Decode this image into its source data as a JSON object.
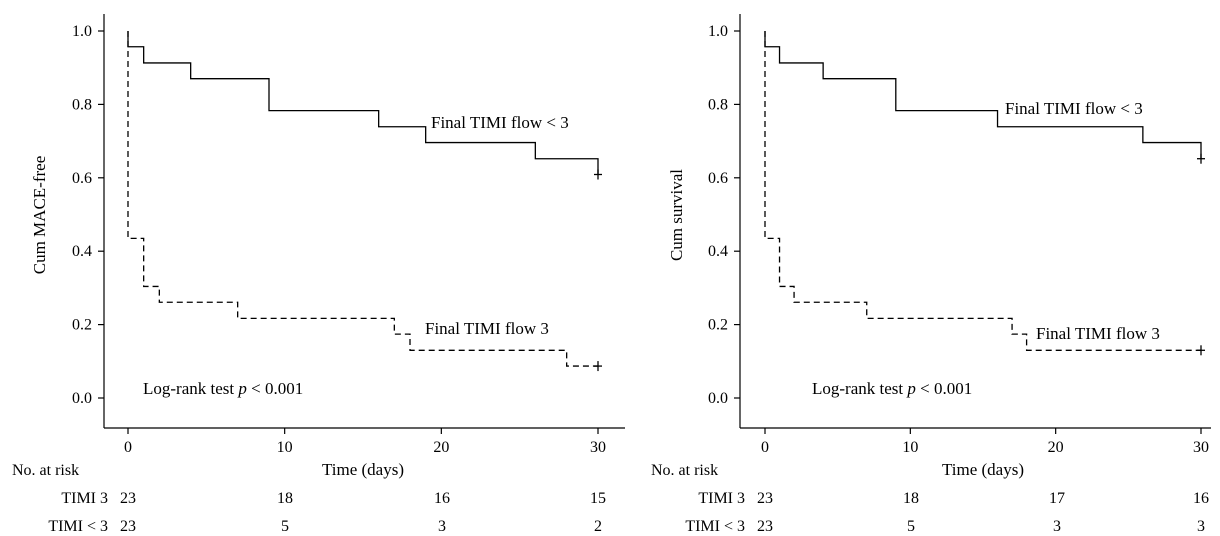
{
  "chart_data": [
    {
      "type": "line",
      "subtype": "kaplan-meier",
      "xlabel": "Time (days)",
      "ylabel": "Cum MACE-free",
      "xlim": [
        0,
        30
      ],
      "ylim": [
        0.0,
        1.0
      ],
      "xticks": [
        "0",
        "10",
        "20",
        "30"
      ],
      "yticks": [
        "0.0",
        "0.2",
        "0.4",
        "0.6",
        "0.8",
        "1.0"
      ],
      "grid": false,
      "annotation": "Log-rank test ",
      "annotation_p": "p",
      "annotation_rest": " < 0.001",
      "series": [
        {
          "name": "Final TIMI flow < 3",
          "style": "solid",
          "x": [
            0,
            1,
            4,
            9,
            16,
            19,
            26,
            30
          ],
          "y": [
            0.957,
            0.913,
            0.87,
            0.783,
            0.739,
            0.696,
            0.652,
            0.609
          ],
          "censored": [
            [
              30,
              0.609
            ]
          ]
        },
        {
          "name": "Final TIMI flow 3",
          "style": "dashed",
          "x": [
            0,
            1,
            2,
            7,
            17,
            18,
            28,
            30
          ],
          "y": [
            0.435,
            0.304,
            0.261,
            0.217,
            0.174,
            0.13,
            0.087,
            0.087
          ],
          "censored": [
            [
              30,
              0.087
            ]
          ]
        }
      ],
      "risk_table": {
        "title": "No. at risk",
        "times": [
          0,
          10,
          20,
          30
        ],
        "rows": [
          {
            "label": "TIMI 3",
            "values": [
              "23",
              "18",
              "16",
              "15"
            ]
          },
          {
            "label": "TIMI < 3",
            "values": [
              "23",
              "5",
              "3",
              "2"
            ]
          }
        ]
      }
    },
    {
      "type": "line",
      "subtype": "kaplan-meier",
      "xlabel": "Time (days)",
      "ylabel": "Cum survival",
      "xlim": [
        0,
        30
      ],
      "ylim": [
        0.0,
        1.0
      ],
      "xticks": [
        "0",
        "10",
        "20",
        "30"
      ],
      "yticks": [
        "0.0",
        "0.2",
        "0.4",
        "0.6",
        "0.8",
        "1.0"
      ],
      "grid": false,
      "annotation": "Log-rank test ",
      "annotation_p": "p",
      "annotation_rest": " < 0.001",
      "series": [
        {
          "name": "Final TIMI flow < 3",
          "style": "solid",
          "x": [
            0,
            1,
            4,
            9,
            16,
            26,
            30
          ],
          "y": [
            0.957,
            0.913,
            0.87,
            0.783,
            0.739,
            0.696,
            0.652
          ],
          "censored": [
            [
              30,
              0.652
            ]
          ]
        },
        {
          "name": "Final TIMI flow 3",
          "style": "dashed",
          "x": [
            0,
            1,
            2,
            7,
            17,
            18,
            30
          ],
          "y": [
            0.435,
            0.304,
            0.261,
            0.217,
            0.174,
            0.13,
            0.13
          ],
          "censored": [
            [
              30,
              0.13
            ]
          ]
        }
      ],
      "risk_table": {
        "title": "No. at risk",
        "times": [
          0,
          10,
          20,
          30
        ],
        "rows": [
          {
            "label": "TIMI 3",
            "values": [
              "23",
              "18",
              "17",
              "16"
            ]
          },
          {
            "label": "TIMI < 3",
            "values": [
              "23",
              "5",
              "3",
              "3"
            ]
          }
        ]
      }
    }
  ]
}
